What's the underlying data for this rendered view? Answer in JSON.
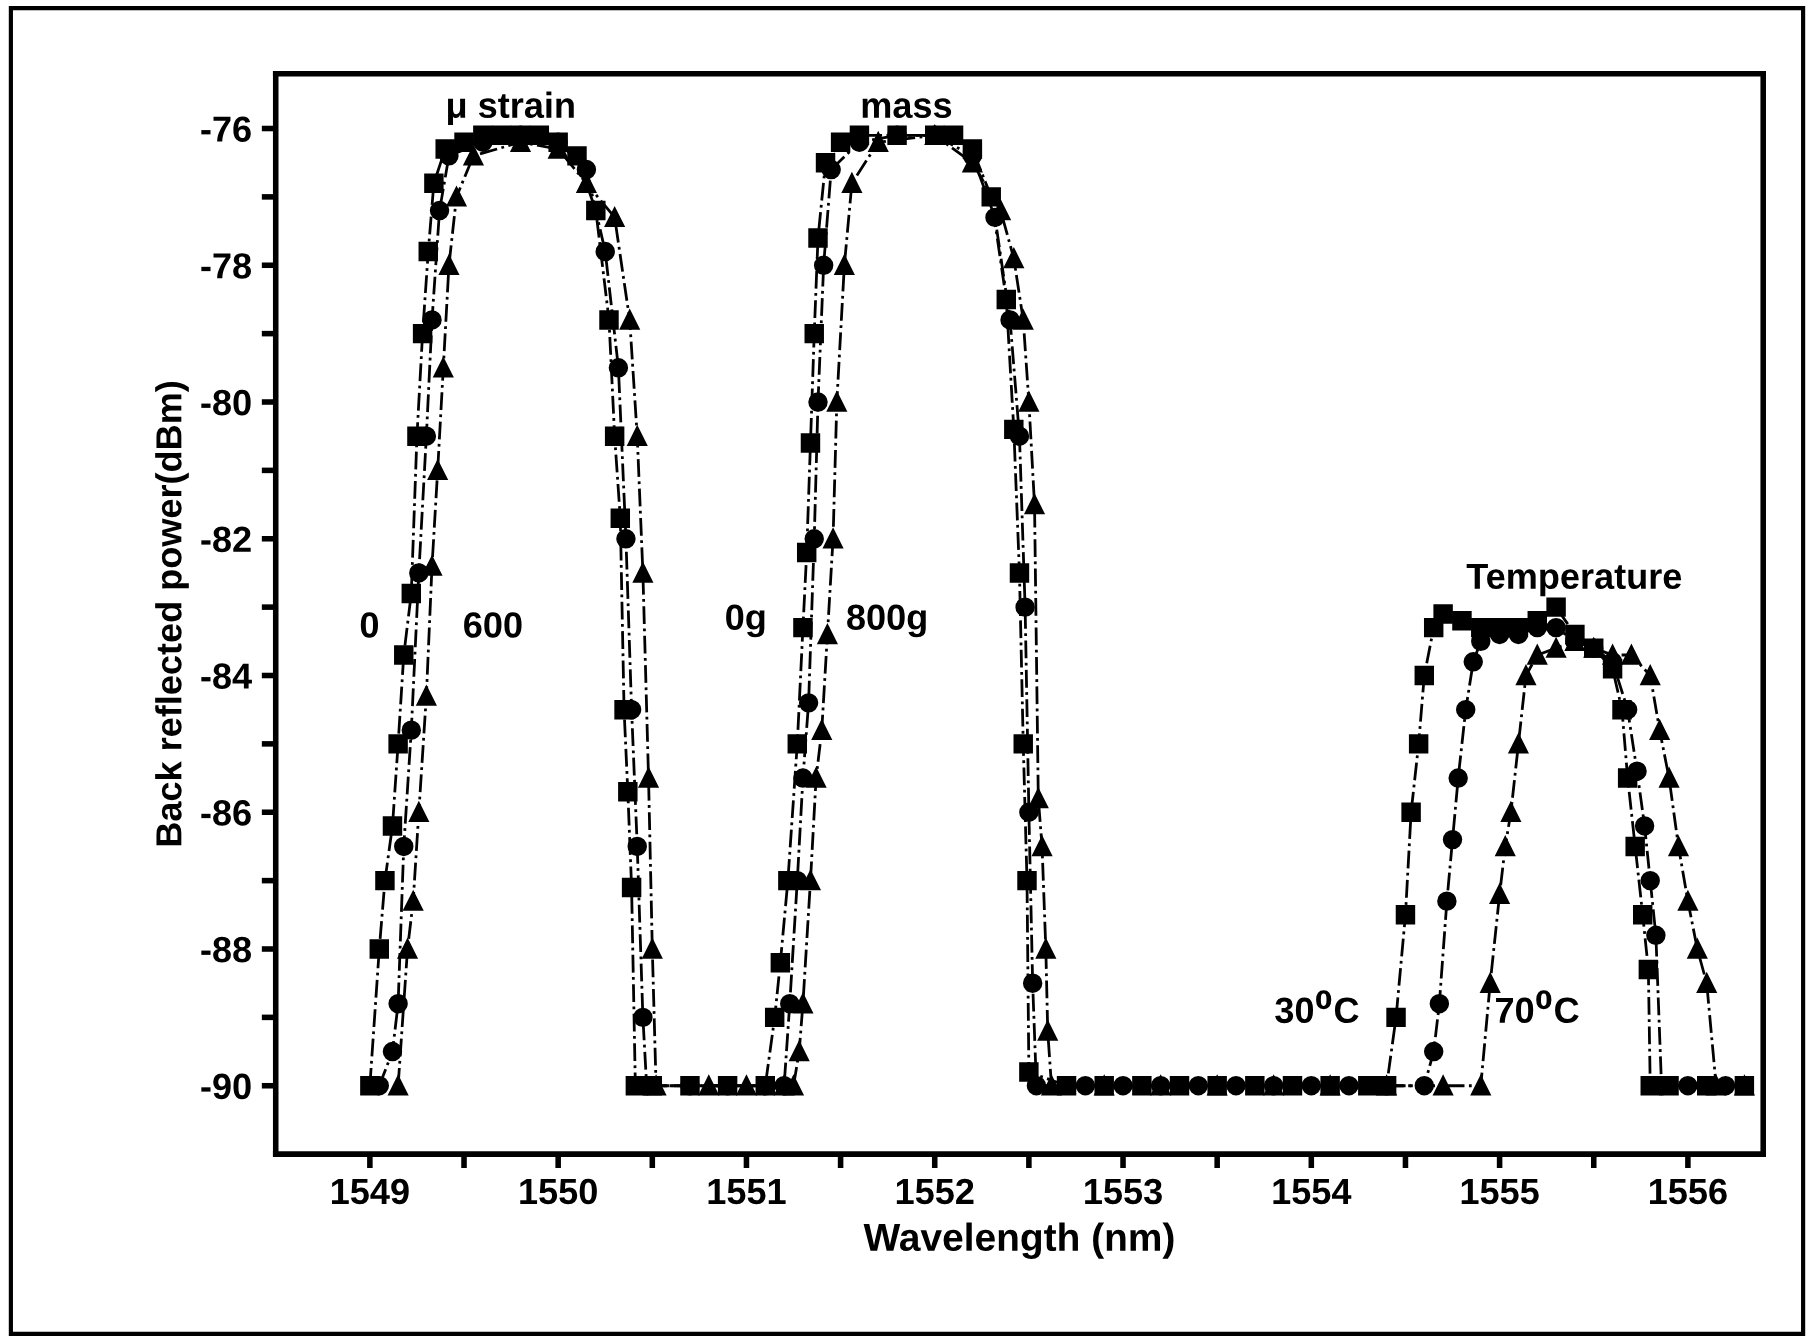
{
  "chart_data": {
    "type": "line",
    "xlabel": "Wavelength (nm)",
    "ylabel": "Back reflected power(dBm)",
    "xlim": [
      1548.5,
      1556.4
    ],
    "ylim": [
      -91,
      -75.2
    ],
    "xticks": [
      1549,
      {
        "value": 1549.5,
        "label": null
      },
      1550,
      {
        "value": 1550.5,
        "label": null
      },
      1551,
      {
        "value": 1551.5,
        "label": null
      },
      1552,
      {
        "value": 1552.5,
        "label": null
      },
      1553,
      {
        "value": 1553.5,
        "label": null
      },
      1554,
      {
        "value": 1554.5,
        "label": null
      },
      1555,
      {
        "value": 1555.5,
        "label": null
      },
      1556
    ],
    "yticks": [
      -90,
      {
        "value": -89,
        "label": null
      },
      -88,
      {
        "value": -87,
        "label": null
      },
      -86,
      {
        "value": -85,
        "label": null
      },
      -84,
      {
        "value": -83,
        "label": null
      },
      -82,
      {
        "value": -81,
        "label": null
      },
      -80,
      {
        "value": -79,
        "label": null
      },
      -78,
      {
        "value": -77,
        "label": null
      },
      -76
    ],
    "grid": false,
    "legend": false,
    "series": [
      {
        "color": "#000000",
        "marker": "square",
        "line_style": "dashed",
        "x": [
          1549.0,
          1549.05,
          1549.08,
          1549.12,
          1549.15,
          1549.18,
          1549.22,
          1549.25,
          1549.28,
          1549.31,
          1549.34,
          1549.4,
          1549.5,
          1549.6,
          1549.7,
          1549.8,
          1549.9,
          1550.0,
          1550.1,
          1550.2,
          1550.27,
          1550.3,
          1550.33,
          1550.35,
          1550.37,
          1550.39,
          1550.41,
          1550.5,
          1550.7,
          1550.9,
          1551.1,
          1551.15,
          1551.18,
          1551.22,
          1551.27,
          1551.3,
          1551.32,
          1551.34,
          1551.36,
          1551.38,
          1551.42,
          1551.5,
          1551.6,
          1551.8,
          1552.0,
          1552.1,
          1552.2,
          1552.3,
          1552.38,
          1552.42,
          1552.45,
          1552.47,
          1552.49,
          1552.5,
          1552.7,
          1552.9,
          1553.1,
          1553.3,
          1553.5,
          1553.7,
          1553.9,
          1554.1,
          1554.3,
          1554.4,
          1554.45,
          1554.5,
          1554.53,
          1554.57,
          1554.6,
          1554.65,
          1554.7,
          1554.8,
          1554.9,
          1555.0,
          1555.1,
          1555.2,
          1555.3,
          1555.4,
          1555.5,
          1555.6,
          1555.65,
          1555.68,
          1555.72,
          1555.76,
          1555.79,
          1555.8,
          1555.9,
          1556.1,
          1556.3
        ],
        "values": [
          -90,
          -88.0,
          -87.0,
          -86.2,
          -85.0,
          -83.7,
          -82.8,
          -80.5,
          -79.0,
          -77.8,
          -76.8,
          -76.3,
          -76.2,
          -76.1,
          -76.1,
          -76.1,
          -76.1,
          -76.2,
          -76.4,
          -77.2,
          -78.8,
          -80.5,
          -81.7,
          -84.5,
          -85.7,
          -87.1,
          -90,
          -90,
          -90,
          -90,
          -90,
          -89.0,
          -88.2,
          -87.0,
          -85.0,
          -83.3,
          -82.2,
          -80.6,
          -79.0,
          -77.6,
          -76.5,
          -76.2,
          -76.1,
          -76.1,
          -76.1,
          -76.1,
          -76.3,
          -77.0,
          -78.5,
          -80.4,
          -82.5,
          -85.0,
          -87.0,
          -89.8,
          -90,
          -90,
          -90,
          -90,
          -90,
          -90,
          -90,
          -90,
          -90,
          -90,
          -89.0,
          -87.5,
          -86.0,
          -85.0,
          -84.0,
          -83.3,
          -83.1,
          -83.2,
          -83.3,
          -83.3,
          -83.3,
          -83.2,
          -83.0,
          -83.4,
          -83.6,
          -83.9,
          -84.5,
          -85.5,
          -86.5,
          -87.5,
          -88.3,
          -90,
          -90,
          -90,
          -90
        ]
      },
      {
        "color": "#000000",
        "marker": "circle",
        "line_style": "dashed",
        "x": [
          1549.05,
          1549.12,
          1549.15,
          1549.18,
          1549.22,
          1549.26,
          1549.3,
          1549.33,
          1549.37,
          1549.42,
          1549.6,
          1549.8,
          1550.0,
          1550.15,
          1550.25,
          1550.32,
          1550.36,
          1550.39,
          1550.42,
          1550.45,
          1550.47,
          1550.7,
          1550.9,
          1551.1,
          1551.2,
          1551.23,
          1551.27,
          1551.3,
          1551.33,
          1551.36,
          1551.38,
          1551.41,
          1551.45,
          1551.6,
          1551.8,
          1552.0,
          1552.2,
          1552.32,
          1552.4,
          1552.45,
          1552.48,
          1552.5,
          1552.52,
          1552.54,
          1552.8,
          1553.0,
          1553.2,
          1553.4,
          1553.6,
          1553.8,
          1554.0,
          1554.2,
          1554.4,
          1554.6,
          1554.65,
          1554.68,
          1554.72,
          1554.75,
          1554.78,
          1554.82,
          1554.86,
          1554.9,
          1555.0,
          1555.1,
          1555.2,
          1555.3,
          1555.4,
          1555.5,
          1555.6,
          1555.68,
          1555.73,
          1555.77,
          1555.8,
          1555.83,
          1555.86,
          1556.0,
          1556.2
        ],
        "values": [
          -90,
          -89.5,
          -88.8,
          -86.5,
          -84.8,
          -82.5,
          -80.5,
          -78.8,
          -77.2,
          -76.4,
          -76.2,
          -76.1,
          -76.2,
          -76.6,
          -77.8,
          -79.5,
          -82.0,
          -84.5,
          -86.5,
          -89.0,
          -90,
          -90,
          -90,
          -90,
          -90,
          -88.8,
          -87.0,
          -85.5,
          -84.4,
          -82.0,
          -80.0,
          -78.0,
          -76.6,
          -76.2,
          -76.1,
          -76.1,
          -76.4,
          -77.3,
          -78.8,
          -80.5,
          -83.0,
          -86.0,
          -88.5,
          -90,
          -90,
          -90,
          -90,
          -90,
          -90,
          -90,
          -90,
          -90,
          -90,
          -90,
          -89.5,
          -88.8,
          -87.3,
          -86.4,
          -85.5,
          -84.5,
          -83.8,
          -83.5,
          -83.4,
          -83.4,
          -83.3,
          -83.3,
          -83.5,
          -83.6,
          -83.8,
          -84.5,
          -85.4,
          -86.2,
          -87.0,
          -87.8,
          -90,
          -90,
          -90
        ]
      },
      {
        "color": "#000000",
        "marker": "triangle",
        "line_style": "dashed",
        "x": [
          1549.15,
          1549.2,
          1549.23,
          1549.26,
          1549.3,
          1549.33,
          1549.36,
          1549.39,
          1549.42,
          1549.46,
          1549.55,
          1549.8,
          1550.0,
          1550.15,
          1550.3,
          1550.38,
          1550.42,
          1550.45,
          1550.48,
          1550.5,
          1550.52,
          1550.8,
          1551.0,
          1551.2,
          1551.25,
          1551.28,
          1551.3,
          1551.34,
          1551.37,
          1551.4,
          1551.43,
          1551.46,
          1551.48,
          1551.52,
          1551.56,
          1551.7,
          1552.0,
          1552.2,
          1552.35,
          1552.42,
          1552.47,
          1552.5,
          1552.53,
          1552.55,
          1552.57,
          1552.59,
          1552.6,
          1552.62,
          1552.9,
          1553.2,
          1553.5,
          1553.8,
          1554.1,
          1554.4,
          1554.7,
          1554.9,
          1554.95,
          1555.0,
          1555.03,
          1555.06,
          1555.1,
          1555.14,
          1555.2,
          1555.3,
          1555.4,
          1555.5,
          1555.6,
          1555.7,
          1555.8,
          1555.85,
          1555.9,
          1555.95,
          1556.0,
          1556.05,
          1556.1,
          1556.15,
          1556.3
        ],
        "values": [
          -90,
          -88.0,
          -87.3,
          -86.0,
          -84.3,
          -82.4,
          -81.0,
          -79.5,
          -78.0,
          -77.0,
          -76.4,
          -76.2,
          -76.3,
          -76.8,
          -77.3,
          -78.8,
          -80.5,
          -82.5,
          -85.5,
          -88.0,
          -90,
          -90,
          -90,
          -90,
          -90,
          -89.5,
          -88.8,
          -87.0,
          -85.5,
          -84.8,
          -83.4,
          -82.0,
          -80.0,
          -78.0,
          -76.8,
          -76.2,
          -76.1,
          -76.5,
          -77.2,
          -77.9,
          -78.8,
          -80.0,
          -81.5,
          -85.8,
          -86.5,
          -88.0,
          -89.2,
          -90,
          -90,
          -90,
          -90,
          -90,
          -90,
          -90,
          -90,
          -90,
          -88.5,
          -87.2,
          -86.5,
          -86.0,
          -85.0,
          -84.0,
          -83.7,
          -83.6,
          -83.5,
          -83.6,
          -83.7,
          -83.7,
          -84.0,
          -84.8,
          -85.5,
          -86.5,
          -87.3,
          -88.0,
          -88.5,
          -90,
          -90
        ]
      }
    ],
    "annotations": [
      "μ strain",
      "mass",
      "0",
      "600",
      "0g",
      "800g",
      "Temperature",
      "30$^{0}$C",
      "70$^{0}$C"
    ]
  }
}
